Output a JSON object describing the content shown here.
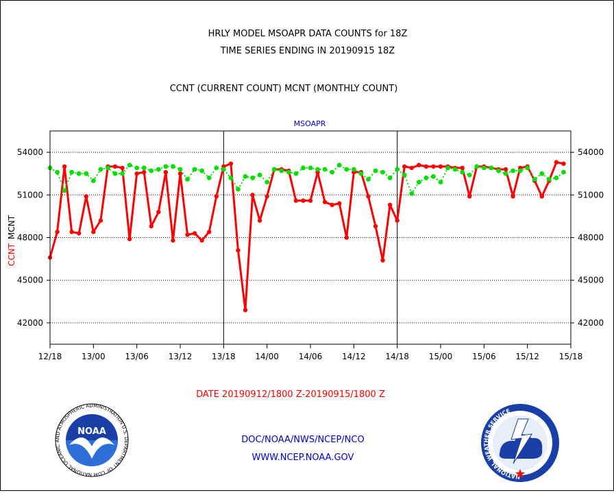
{
  "header": {
    "title_line1": "HRLY MODEL MSOAPR DATA COUNTS for 18Z",
    "title_line2": "TIME SERIES ENDING IN 20190915 18Z",
    "subtitle": "CCNT (CURRENT COUNT) MCNT (MONTHLY COUNT)"
  },
  "footer": {
    "date_range": "DATE 20190912/1800 Z-20190915/1800 Z",
    "org": "DOC/NOAA/NWS/NCEP/NCO",
    "url": "WWW.NCEP.NOAA.GOV",
    "noaa_logo_text": "NOAA",
    "noaa_ring_text": "NATIONAL OCEANIC AND ATMOSPHERIC ADMINISTRATION U.S. DEPARTMENT OF COMMERCE",
    "nws_ring_text": "NATIONAL WEATHER SERVICE"
  },
  "colors": {
    "ccnt": "#ff0000",
    "mcnt": "#00dd00",
    "text": "#000000",
    "link": "#0000cc"
  },
  "chart_data": {
    "type": "line",
    "title": "MSOAPR",
    "ylabel_parts": [
      "CCNT",
      "MCNT"
    ],
    "ylim": [
      40500,
      55500
    ],
    "yticks": [
      42000,
      45000,
      48000,
      51000,
      54000
    ],
    "ytick_labels": [
      "42000",
      "45000",
      "48000",
      "51000",
      "54000"
    ],
    "xlim": [
      0,
      72
    ],
    "xticks": [
      0,
      6,
      12,
      18,
      24,
      30,
      36,
      42,
      48,
      54,
      60,
      66,
      72
    ],
    "xtick_labels": [
      "12/18",
      "13/00",
      "13/06",
      "13/12",
      "13/18",
      "14/00",
      "14/06",
      "14/12",
      "14/18",
      "15/00",
      "15/06",
      "15/12",
      "15/18"
    ],
    "day_separators": [
      24,
      48
    ],
    "grid": true,
    "series": [
      {
        "name": "CCNT",
        "values": [
          46600,
          48400,
          53000,
          48400,
          48300,
          50900,
          48400,
          49200,
          53000,
          53000,
          52900,
          47900,
          52500,
          52600,
          48800,
          49800,
          52600,
          47800,
          52500,
          48200,
          48300,
          47800,
          48400,
          50900,
          53000,
          53200,
          47100,
          42900,
          51000,
          49200,
          50900,
          52800,
          52800,
          52700,
          50600,
          50600,
          50600,
          52600,
          50500,
          50300,
          50400,
          48000,
          52600,
          52600,
          50900,
          48800,
          46400,
          50300,
          49200,
          53000,
          52900,
          53100,
          53000,
          53000,
          53000,
          53000,
          52900,
          52900,
          50900,
          53000,
          53000,
          52900,
          52800,
          52800,
          50900,
          52900,
          53000,
          52000,
          50900,
          52000,
          53300,
          53200
        ]
      },
      {
        "name": "MCNT",
        "values": [
          52900,
          52600,
          51300,
          52600,
          52500,
          52500,
          52000,
          52800,
          52900,
          52500,
          52500,
          53100,
          52900,
          52900,
          52700,
          52800,
          53000,
          53000,
          52800,
          52100,
          52800,
          52700,
          52200,
          52900,
          52800,
          52200,
          51400,
          52300,
          52200,
          52400,
          51900,
          52800,
          52700,
          52600,
          52500,
          52900,
          52900,
          52800,
          52800,
          52600,
          53100,
          52800,
          52800,
          52500,
          52100,
          52700,
          52600,
          52200,
          52800,
          52400,
          51100,
          51900,
          52200,
          52300,
          51900,
          52900,
          52800,
          52600,
          52400,
          53000,
          52900,
          52900,
          52700,
          52500,
          52700,
          52700,
          52900,
          52100,
          52500,
          52100,
          52200,
          52600
        ]
      }
    ]
  }
}
